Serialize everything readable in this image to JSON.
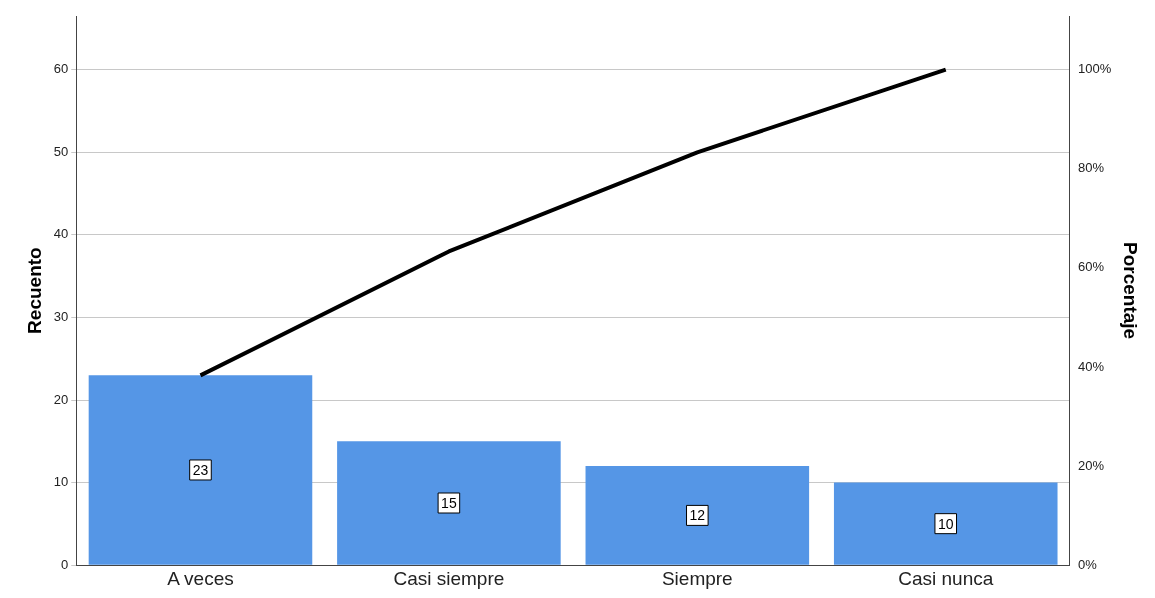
{
  "chart_data": {
    "type": "bar",
    "categories": [
      "A veces",
      "Casi siempre",
      "Siempre",
      "Casi nunca"
    ],
    "series": [
      {
        "color": "#5596e6",
        "values": [
          23,
          15,
          12,
          10
        ],
        "value_labels": [
          "23",
          "15",
          "12",
          "10"
        ]
      },
      {
        "type": "line",
        "axis": "y2",
        "color": "#000000",
        "values": [
          38.3,
          63.3,
          83.3,
          100
        ]
      }
    ],
    "ylabel": "Recuento",
    "y2label": "Porcentaje",
    "ylim": [
      0,
      66.5
    ],
    "yticks": [
      0,
      10,
      20,
      30,
      40,
      50,
      60
    ],
    "y2lim": [
      0,
      110.8
    ],
    "y2ticks": [
      {
        "value": 0,
        "label": "0%"
      },
      {
        "value": 20,
        "label": "20%"
      },
      {
        "value": 40,
        "label": "40%"
      },
      {
        "value": 60,
        "label": "60%"
      },
      {
        "value": 80,
        "label": "80%"
      },
      {
        "value": 100,
        "label": "100%"
      }
    ],
    "grid": "y",
    "legend": false,
    "marker": "none",
    "line_style": "solid"
  }
}
